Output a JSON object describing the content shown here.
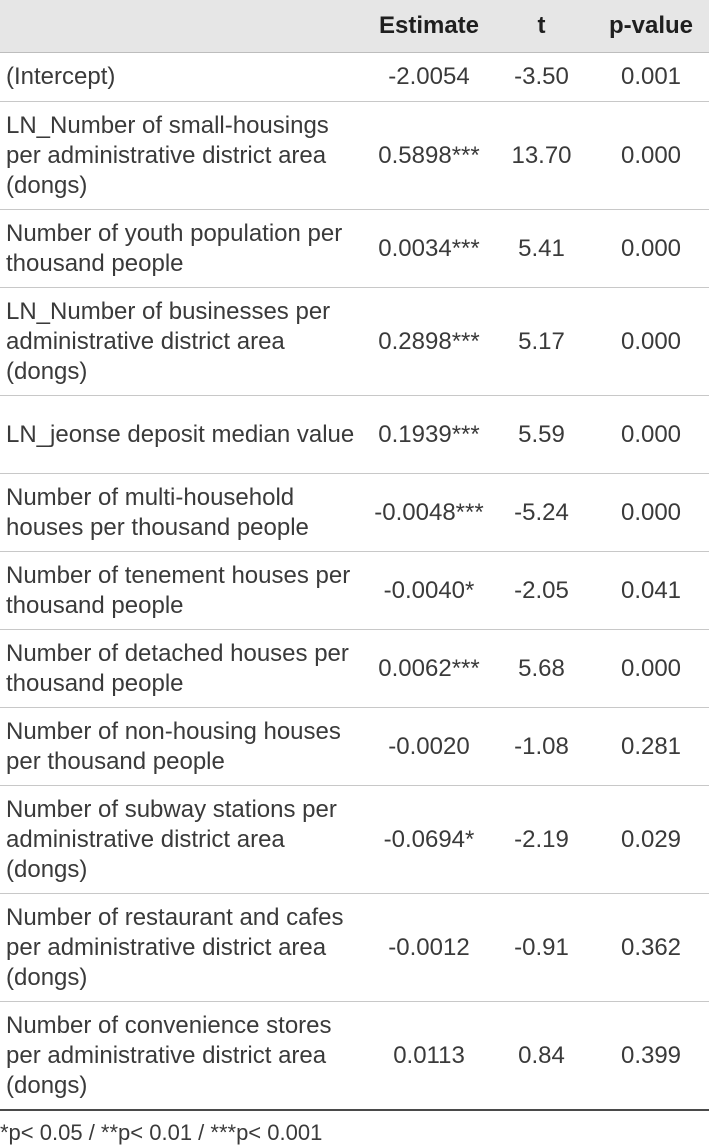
{
  "table": {
    "headers": [
      "",
      "Estimate",
      "t",
      "p-value"
    ],
    "rows": [
      {
        "variable": "(Intercept)",
        "estimate": "-2.0054",
        "t": "-3.50",
        "p": "0.001"
      },
      {
        "variable": "LN_Number of small-housings per administrative district area (dongs)",
        "estimate": "0.5898***",
        "t": "13.70",
        "p": "0.000"
      },
      {
        "variable": "Number of youth population per thousand people",
        "estimate": "0.0034***",
        "t": "5.41",
        "p": "0.000"
      },
      {
        "variable": "LN_Number of businesses per administrative district area (dongs)",
        "estimate": "0.2898***",
        "t": "5.17",
        "p": "0.000"
      },
      {
        "variable": "LN_jeonse deposit median value",
        "estimate": "0.1939***",
        "t": "5.59",
        "p": "0.000"
      },
      {
        "variable": "Number of multi-household houses per thousand people",
        "estimate": "-0.0048***",
        "t": "-5.24",
        "p": "0.000"
      },
      {
        "variable": "Number of tenement houses per thousand people",
        "estimate": "-0.0040*",
        "t": "-2.05",
        "p": "0.041"
      },
      {
        "variable": "Number of detached houses per thousand people",
        "estimate": "0.0062***",
        "t": "5.68",
        "p": "0.000"
      },
      {
        "variable": "Number of non-housing houses per thousand people",
        "estimate": "-0.0020",
        "t": "-1.08",
        "p": "0.281"
      },
      {
        "variable": "Number of subway stations per administrative district area (dongs)",
        "estimate": "-0.0694*",
        "t": "-2.19",
        "p": "0.029"
      },
      {
        "variable": "Number of restaurant and cafes per administrative district area (dongs)",
        "estimate": "-0.0012",
        "t": "-0.91",
        "p": "0.362"
      },
      {
        "variable": "Number of convenience stores per administrative district area (dongs)",
        "estimate": "0.0113",
        "t": "0.84",
        "p": "0.399"
      }
    ]
  },
  "footnote": "*p< 0.05 / **p< 0.01 / ***p< 0.001"
}
